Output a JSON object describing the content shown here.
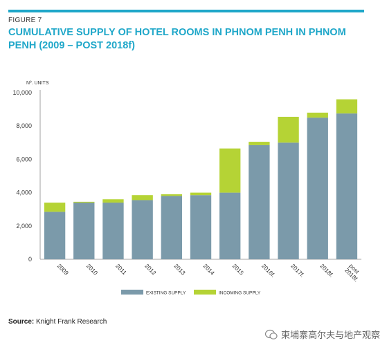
{
  "header": {
    "figure_label": "FIGURE 7",
    "title": "CUMULATIVE SUPPLY OF HOTEL ROOMS IN PHNOM PENH IN PHNOM PENH (2009 – POST 2018f)"
  },
  "chart_data": {
    "type": "bar",
    "stacked": true,
    "ylabel": "Nº. UNITS",
    "ylim": [
      0,
      10000
    ],
    "yticks": [
      "0",
      "2,000",
      "4,000",
      "6,000",
      "8,000",
      "10,000"
    ],
    "categories": [
      "2009",
      "2010",
      "2011",
      "2012",
      "2013",
      "2014",
      "2015",
      "2016f.",
      "2017f.",
      "2018f.",
      "post 2018f."
    ],
    "series": [
      {
        "name": "EXISTING SUPPLY",
        "color": "#7b9aaa",
        "values": [
          2850,
          3400,
          3400,
          3550,
          3800,
          3850,
          4000,
          6850,
          7000,
          8500,
          8750
        ]
      },
      {
        "name": "INCOMING SUPPLY",
        "color": "#b5d335",
        "values": [
          550,
          50,
          200,
          300,
          100,
          150,
          2650,
          200,
          1550,
          300,
          850
        ]
      }
    ],
    "grid": false,
    "legend": "bottom-center"
  },
  "footer": {
    "source_label": "Source:",
    "source_text": "Knight Frank Research",
    "watermark": "柬埔寨高尔夫与地产观察"
  }
}
